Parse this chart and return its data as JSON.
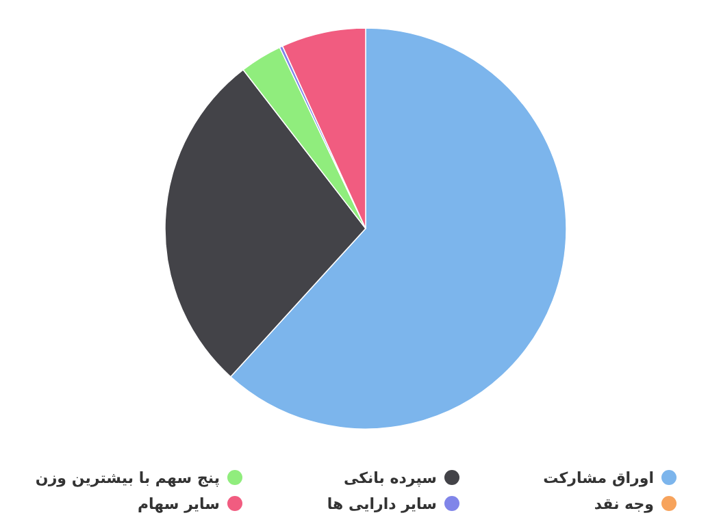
{
  "chart_data": {
    "type": "pie",
    "categories": [
      "اوراق مشارکت",
      "سپرده بانکی",
      "پنج سهم با بیشترین وزن",
      "وجه نقد",
      "سایر دارایی ها",
      "سایر سهام"
    ],
    "values": [
      61.75,
      27.8,
      3.4,
      0,
      0.25,
      6.8
    ],
    "colors": [
      "#7cb5ec",
      "#434348",
      "#90ed7d",
      "#f7a35c",
      "#8085e9",
      "#f15c80"
    ],
    "legend": "bottom"
  }
}
